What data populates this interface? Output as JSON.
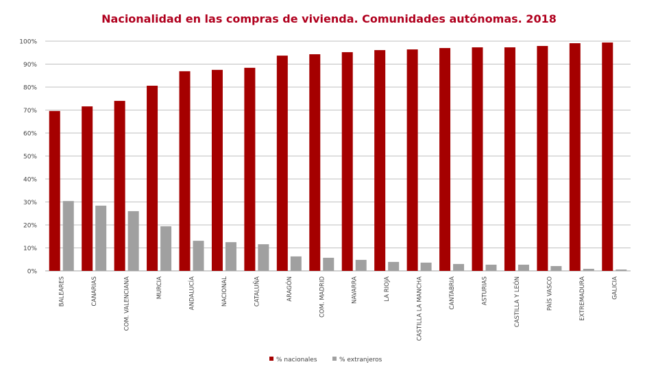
{
  "chart_data": {
    "type": "bar",
    "title": "Nacionalidad en las compras de vivienda. Comunidades autónomas. 2018",
    "xlabel": "",
    "ylabel": "",
    "ylim": [
      0,
      100
    ],
    "yticks": [
      "0%",
      "10%",
      "20%",
      "30%",
      "40%",
      "50%",
      "60%",
      "70%",
      "80%",
      "90%",
      "100%"
    ],
    "grid": true,
    "legend_position": "bottom",
    "categories": [
      "BALEARES",
      "CANARIAS",
      "COM. VALENCIANA",
      "MURCIA",
      "ANDALUCÍA",
      "NACIONAL",
      "CATALUÑA",
      "ARAGÓN",
      "COM. MADRID",
      "NAVARRA",
      "LA RIOJA",
      "CASTILLA LA MANCHA",
      "CANTABRIA",
      "ASTURIAS",
      "CASTILLA Y LEÓN",
      "PAÍS VASCO",
      "EXTREMADURA",
      "GALICIA"
    ],
    "series": [
      {
        "name": "% nacionales",
        "color": "#a50000",
        "values": [
          69.6,
          71.6,
          74.0,
          80.6,
          86.9,
          87.5,
          88.4,
          93.7,
          94.3,
          95.2,
          96.1,
          96.4,
          97.0,
          97.3,
          97.3,
          97.9,
          99.1,
          99.4
        ]
      },
      {
        "name": "% extranjeros",
        "color": "#a0a0a0",
        "values": [
          30.4,
          28.4,
          26.0,
          19.4,
          13.1,
          12.5,
          11.6,
          6.3,
          5.7,
          4.8,
          3.9,
          3.6,
          3.0,
          2.7,
          2.7,
          2.1,
          0.9,
          0.6
        ]
      }
    ]
  }
}
